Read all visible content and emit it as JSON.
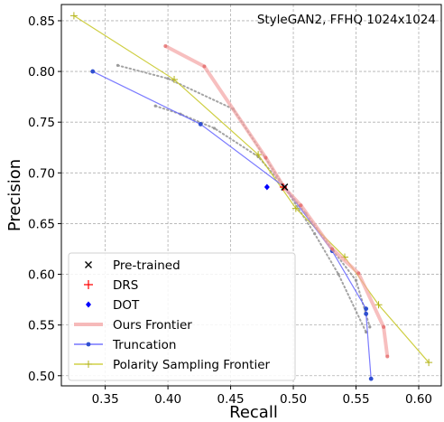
{
  "chart_data": {
    "type": "line",
    "annotation": "StyleGAN2, FFHQ 1024x1024",
    "xlabel": "Recall",
    "ylabel": "Precision",
    "xlim": [
      0.315,
      0.618
    ],
    "ylim": [
      0.49,
      0.866
    ],
    "xticks": [
      0.35,
      0.4,
      0.45,
      0.5,
      0.55,
      0.6
    ],
    "xtick_labels": [
      "0.35",
      "0.40",
      "0.45",
      "0.50",
      "0.55",
      "0.60"
    ],
    "yticks": [
      0.5,
      0.55,
      0.6,
      0.65,
      0.7,
      0.75,
      0.8,
      0.85
    ],
    "ytick_labels": [
      "0.50",
      "0.55",
      "0.60",
      "0.65",
      "0.70",
      "0.75",
      "0.80",
      "0.85"
    ],
    "grid": true,
    "legend_position": "bottom-left",
    "colors": {
      "pretrained": "#000000",
      "drs": "#ff0000",
      "dot": "#0000ff",
      "ours": "#f4a4a4",
      "ours_points": "#e46a6a",
      "truncation": "#5a5aff",
      "truncation_points": "#2f4fd0",
      "polarity": "#c6c620",
      "polarity_points": "#b3b31a",
      "gray": "#9a9a9a"
    },
    "legend": [
      {
        "key": "pretrained",
        "label": "Pre-trained",
        "marker": "x"
      },
      {
        "key": "drs",
        "label": "DRS",
        "marker": "plus"
      },
      {
        "key": "dot",
        "label": "DOT",
        "marker": "diamond"
      },
      {
        "key": "ours",
        "label": "Ours Frontier",
        "marker": "thickline"
      },
      {
        "key": "truncation",
        "label": "Truncation",
        "marker": "line-dot"
      },
      {
        "key": "polarity",
        "label": "Polarity Sampling Frontier",
        "marker": "line-plus"
      }
    ],
    "series": [
      {
        "key": "ours",
        "name": "Ours Frontier",
        "x": [
          0.398,
          0.429,
          0.478,
          0.493,
          0.506,
          0.531,
          0.552,
          0.572,
          0.575
        ],
        "y": [
          0.825,
          0.805,
          0.715,
          0.685,
          0.668,
          0.625,
          0.601,
          0.548,
          0.519
        ]
      },
      {
        "key": "truncation",
        "name": "Truncation",
        "x": [
          0.34,
          0.426,
          0.493,
          0.531,
          0.558,
          0.558,
          0.562
        ],
        "y": [
          0.8,
          0.748,
          0.686,
          0.623,
          0.566,
          0.561,
          0.497
        ]
      },
      {
        "key": "polarity",
        "name": "Polarity Sampling Frontier",
        "x": [
          0.325,
          0.405,
          0.472,
          0.502,
          0.541,
          0.568,
          0.608
        ],
        "y": [
          0.855,
          0.792,
          0.718,
          0.665,
          0.617,
          0.57,
          0.513
        ]
      },
      {
        "key": "gray1",
        "x": [
          0.36,
          0.4,
          0.452,
          0.493,
          0.517,
          0.536,
          0.558
        ],
        "y": [
          0.806,
          0.793,
          0.763,
          0.686,
          0.64,
          0.6,
          0.543
        ]
      },
      {
        "key": "gray2",
        "x": [
          0.39,
          0.41,
          0.437,
          0.472,
          0.493,
          0.51,
          0.532,
          0.55,
          0.561
        ],
        "y": [
          0.766,
          0.758,
          0.744,
          0.716,
          0.686,
          0.66,
          0.623,
          0.594,
          0.548
        ]
      }
    ],
    "points": [
      {
        "key": "dot",
        "name": "DOT",
        "x": 0.479,
        "y": 0.686
      },
      {
        "key": "drs",
        "name": "DRS",
        "x": 0.492,
        "y": 0.686
      },
      {
        "key": "pretrained",
        "name": "Pre-trained",
        "x": 0.493,
        "y": 0.686
      }
    ]
  }
}
